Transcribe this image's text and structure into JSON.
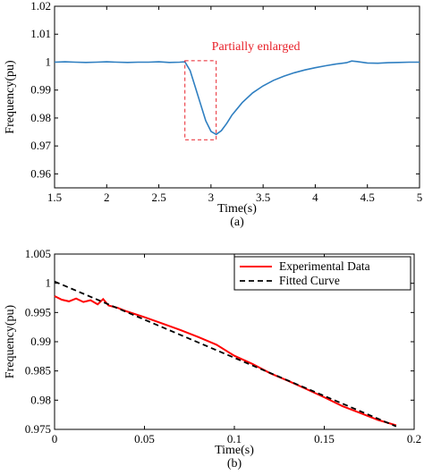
{
  "colors": {
    "top_series": "#2f7fc1",
    "experimental": "#ff0000",
    "fitted": "#000000",
    "annotation": "#e8212a"
  },
  "chart_data": [
    {
      "type": "line",
      "panel_label": "(a)",
      "title": "",
      "xlabel": "Time(s)",
      "ylabel": "Frequency(pu)",
      "xlim": [
        1.5,
        5
      ],
      "ylim": [
        0.955,
        1.02
      ],
      "xticks": [
        1.5,
        2,
        2.5,
        3,
        3.5,
        4,
        4.5,
        5
      ],
      "xtick_labels": [
        "1.5",
        "2",
        "2.5",
        "3",
        "3.5",
        "4",
        "4.5",
        "5"
      ],
      "yticks": [
        0.96,
        0.97,
        0.98,
        0.99,
        1,
        1.01,
        1.02
      ],
      "ytick_labels": [
        "0.96",
        "0.97",
        "0.98",
        "0.99",
        "1",
        "1.01",
        "1.02"
      ],
      "annotation": {
        "text": "Partially enlarged",
        "box_x": [
          2.75,
          3.05
        ],
        "box_y": [
          0.9722,
          1.0005
        ]
      },
      "series": [
        {
          "points": [
            [
              1.5,
              1.0
            ],
            [
              1.6,
              1.0001
            ],
            [
              1.7,
              1.0
            ],
            [
              1.8,
              0.9999
            ],
            [
              1.9,
              1.0
            ],
            [
              2.0,
              1.0001
            ],
            [
              2.1,
              1.0
            ],
            [
              2.2,
              0.9999
            ],
            [
              2.3,
              1.0
            ],
            [
              2.4,
              1.0
            ],
            [
              2.5,
              1.0001
            ],
            [
              2.6,
              0.9999
            ],
            [
              2.7,
              1.0
            ],
            [
              2.75,
              1.0001
            ],
            [
              2.8,
              0.997
            ],
            [
              2.85,
              0.991
            ],
            [
              2.9,
              0.985
            ],
            [
              2.95,
              0.979
            ],
            [
              3.0,
              0.9752
            ],
            [
              3.05,
              0.9741
            ],
            [
              3.1,
              0.9755
            ],
            [
              3.15,
              0.978
            ],
            [
              3.2,
              0.981
            ],
            [
              3.3,
              0.9855
            ],
            [
              3.4,
              0.989
            ],
            [
              3.5,
              0.9915
            ],
            [
              3.6,
              0.9935
            ],
            [
              3.7,
              0.995
            ],
            [
              3.8,
              0.9962
            ],
            [
              3.9,
              0.9972
            ],
            [
              4.0,
              0.998
            ],
            [
              4.1,
              0.9987
            ],
            [
              4.2,
              0.9993
            ],
            [
              4.3,
              0.9998
            ],
            [
              4.35,
              1.0004
            ],
            [
              4.4,
              1.0002
            ],
            [
              4.5,
              0.9997
            ],
            [
              4.6,
              0.9996
            ],
            [
              4.7,
              0.9998
            ],
            [
              4.8,
              0.9999
            ],
            [
              4.9,
              1.0
            ],
            [
              5.0,
              1.0
            ]
          ]
        }
      ]
    },
    {
      "type": "line",
      "panel_label": "(b)",
      "title": "",
      "xlabel": "Time(s)",
      "ylabel": "Frequency(pu)",
      "xlim": [
        0,
        0.2
      ],
      "ylim": [
        0.975,
        1.005
      ],
      "xticks": [
        0,
        0.05,
        0.1,
        0.15,
        0.2
      ],
      "xtick_labels": [
        "0",
        "0.05",
        "0.1",
        "0.15",
        "0.2"
      ],
      "yticks": [
        0.975,
        0.98,
        0.985,
        0.99,
        0.995,
        1,
        1.005
      ],
      "ytick_labels": [
        "0.975",
        "0.98",
        "0.985",
        "0.99",
        "0.995",
        "1",
        "1.005"
      ],
      "legend_position": "top-right",
      "series": [
        {
          "name": "Experimental Data",
          "points": [
            [
              0.0,
              0.9978
            ],
            [
              0.004,
              0.9972
            ],
            [
              0.008,
              0.9969
            ],
            [
              0.012,
              0.9974
            ],
            [
              0.016,
              0.9968
            ],
            [
              0.02,
              0.9971
            ],
            [
              0.024,
              0.9964
            ],
            [
              0.027,
              0.9973
            ],
            [
              0.03,
              0.9962
            ],
            [
              0.035,
              0.9958
            ],
            [
              0.04,
              0.9952
            ],
            [
              0.05,
              0.9942
            ],
            [
              0.06,
              0.9931
            ],
            [
              0.07,
              0.992
            ],
            [
              0.08,
              0.9908
            ],
            [
              0.09,
              0.9895
            ],
            [
              0.1,
              0.9876
            ],
            [
              0.11,
              0.9862
            ],
            [
              0.12,
              0.9846
            ],
            [
              0.13,
              0.9833
            ],
            [
              0.14,
              0.9819
            ],
            [
              0.15,
              0.9805
            ],
            [
              0.16,
              0.979
            ],
            [
              0.17,
              0.9778
            ],
            [
              0.18,
              0.9766
            ],
            [
              0.19,
              0.9757
            ]
          ]
        },
        {
          "name": "Fitted Curve",
          "points": [
            [
              0.0,
              1.0003
            ],
            [
              0.19,
              0.9755
            ]
          ]
        }
      ]
    }
  ]
}
